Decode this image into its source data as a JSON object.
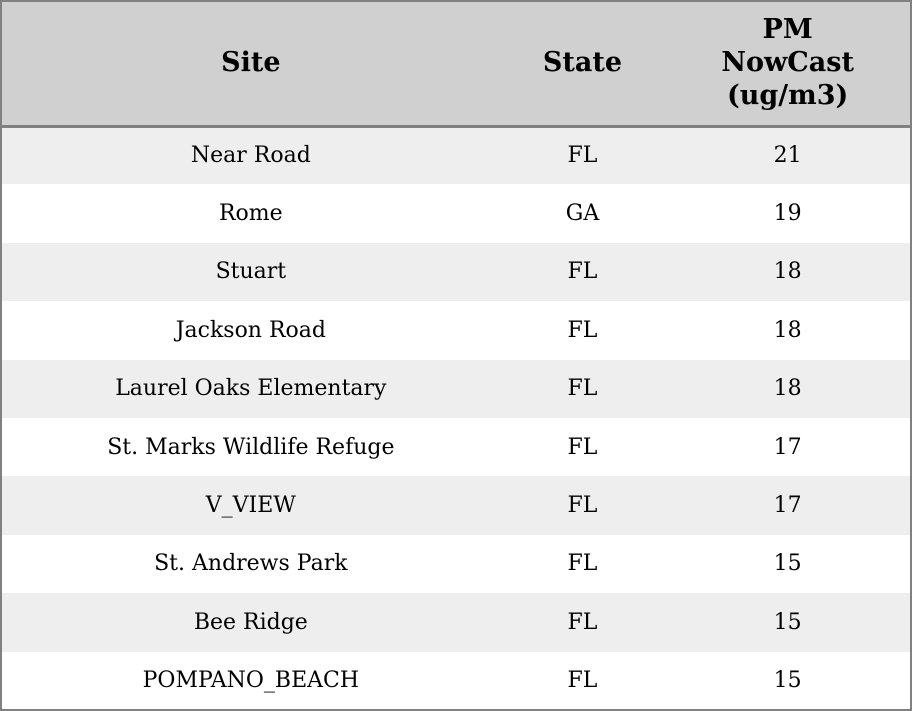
{
  "table": {
    "headers": [
      "Site",
      "State",
      "PM\nNowCast\n(ug/m3)"
    ],
    "rows": [
      {
        "site": "Near Road",
        "state": "FL",
        "pm": "21"
      },
      {
        "site": "Rome",
        "state": "GA",
        "pm": "19"
      },
      {
        "site": "Stuart",
        "state": "FL",
        "pm": "18"
      },
      {
        "site": "Jackson Road",
        "state": "FL",
        "pm": "18"
      },
      {
        "site": "Laurel Oaks Elementary",
        "state": "FL",
        "pm": "18"
      },
      {
        "site": "St. Marks Wildlife Refuge",
        "state": "FL",
        "pm": "17"
      },
      {
        "site": "V_VIEW",
        "state": "FL",
        "pm": "17"
      },
      {
        "site": "St. Andrews Park",
        "state": "FL",
        "pm": "15"
      },
      {
        "site": "Bee Ridge",
        "state": "FL",
        "pm": "15"
      },
      {
        "site": "POMPANO_BEACH",
        "state": "FL",
        "pm": "15"
      }
    ]
  },
  "chart_data": {
    "type": "table",
    "title": "",
    "columns": [
      "Site",
      "State",
      "PM NowCast (ug/m3)"
    ],
    "rows": [
      [
        "Near Road",
        "FL",
        21
      ],
      [
        "Rome",
        "GA",
        19
      ],
      [
        "Stuart",
        "FL",
        18
      ],
      [
        "Jackson Road",
        "FL",
        18
      ],
      [
        "Laurel Oaks Elementary",
        "FL",
        18
      ],
      [
        "St. Marks Wildlife Refuge",
        "FL",
        17
      ],
      [
        "V_VIEW",
        "FL",
        17
      ],
      [
        "St. Andrews Park",
        "FL",
        15
      ],
      [
        "Bee Ridge",
        "FL",
        15
      ],
      [
        "POMPANO_BEACH",
        "FL",
        15
      ]
    ],
    "layout": {
      "header_background": "#d0d0d0",
      "row_stripe_background": "#eeeeee",
      "row_background": "#ffffff",
      "border_color": "#808080",
      "text_color": "#000000",
      "alignment": "center"
    }
  }
}
